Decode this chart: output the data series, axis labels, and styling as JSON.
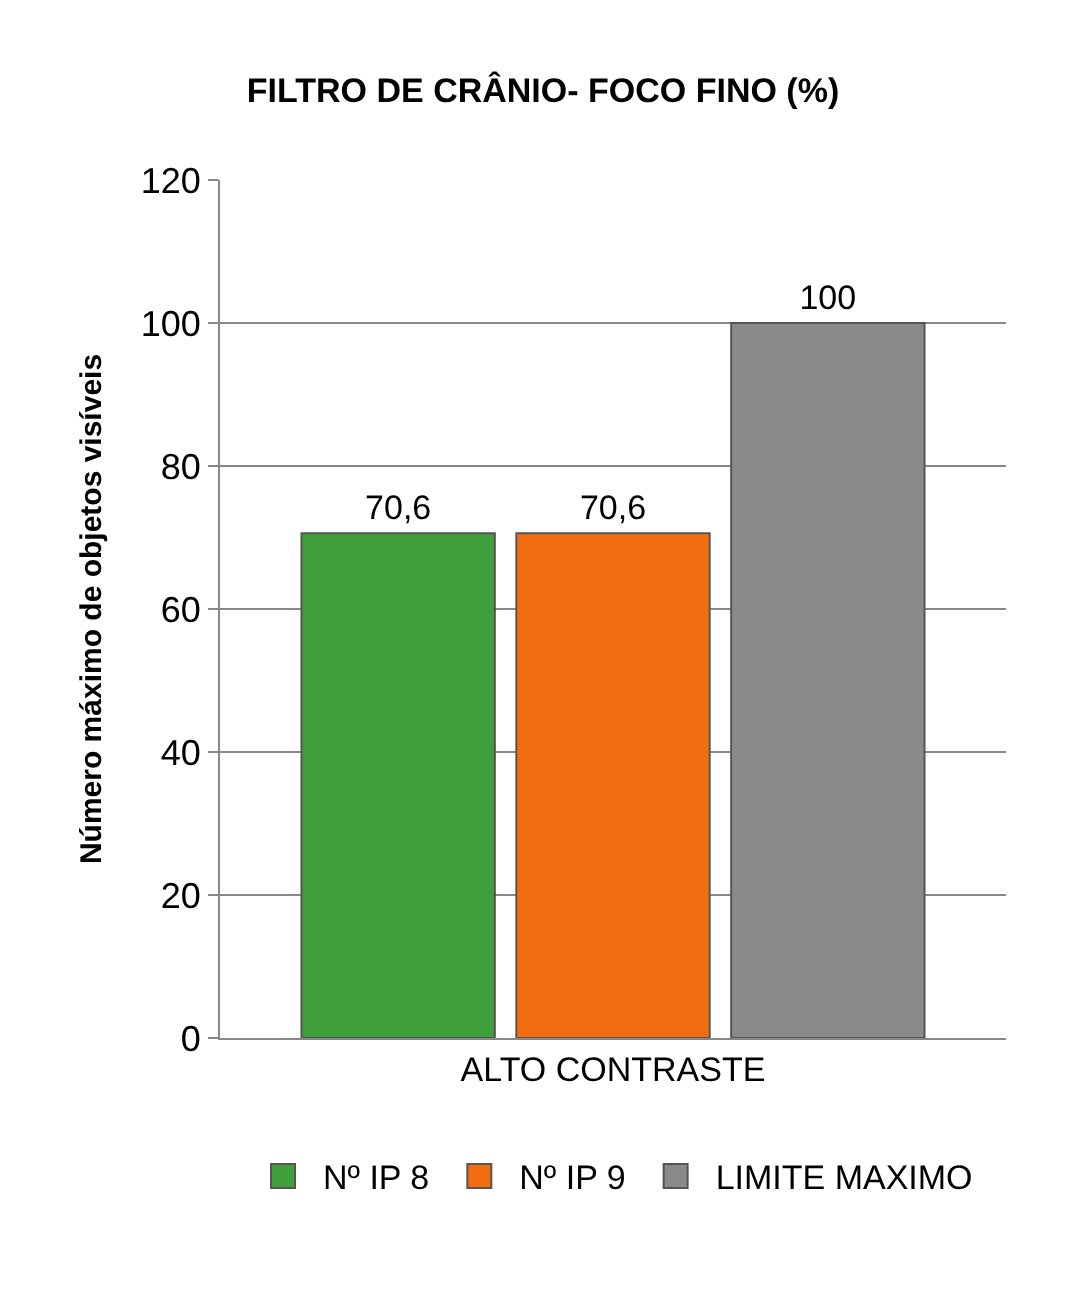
{
  "chart_data": {
    "type": "bar",
    "title": "FILTRO DE CRÂNIO- FOCO FINO (%)",
    "ylabel": "Número máximo de objetos visíveis",
    "categories": [
      "ALTO CONTRASTE"
    ],
    "series": [
      {
        "name": "Nº IP 8",
        "color": "#3f9f3a",
        "values": [
          70.6
        ],
        "value_labels": [
          "70,6"
        ]
      },
      {
        "name": "Nº IP 9",
        "color": "#f26d0f",
        "values": [
          70.6
        ],
        "value_labels": [
          "70,6"
        ]
      },
      {
        "name": "LIMITE MAXIMO",
        "color": "#8a8a8a",
        "values": [
          100
        ],
        "value_labels": [
          "100"
        ]
      }
    ],
    "ylim": [
      0,
      120
    ],
    "yticks": [
      0,
      20,
      40,
      60,
      80,
      100,
      120
    ],
    "grid": "y",
    "legend": "bottom"
  }
}
